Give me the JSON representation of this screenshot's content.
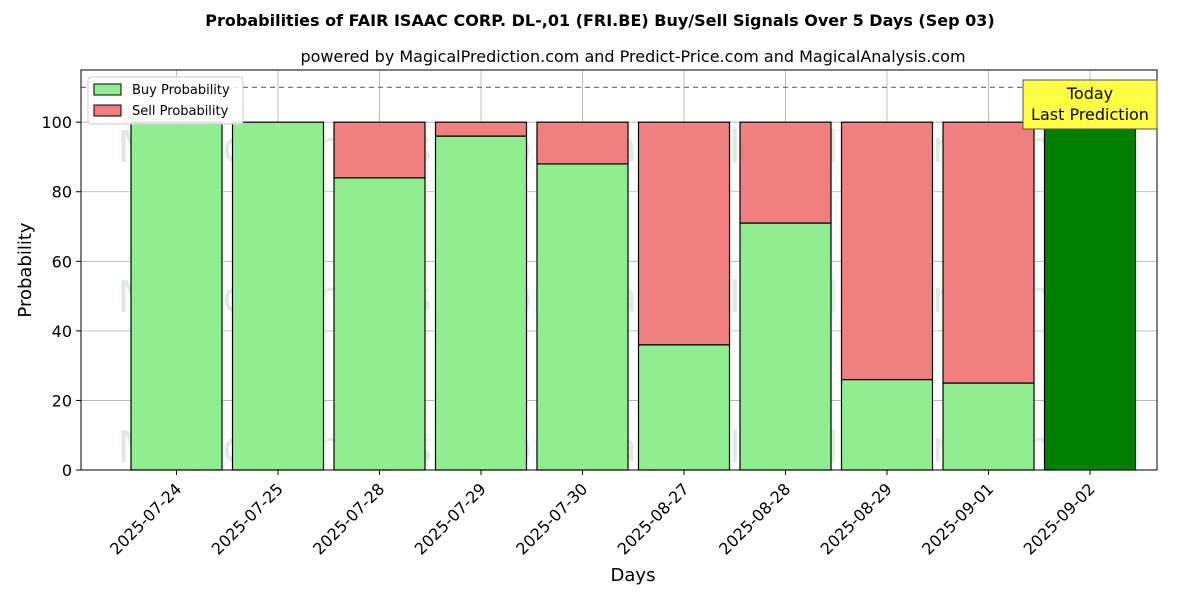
{
  "chart_data": {
    "type": "bar",
    "stacked": true,
    "title": "Probabilities of FAIR ISAAC CORP.  DL-,01 (FRI.BE) Buy/Sell Signals Over 5 Days (Sep 03)",
    "subtitle": "powered by MagicalPrediction.com and Predict-Price.com and MagicalAnalysis.com",
    "xlabel": "Days",
    "ylabel": "Probability",
    "ylim": [
      0,
      115
    ],
    "yticks": [
      0,
      20,
      40,
      60,
      80,
      100
    ],
    "grid": true,
    "reference_line": 110,
    "categories": [
      "2025-07-24",
      "2025-07-25",
      "2025-07-28",
      "2025-07-29",
      "2025-07-30",
      "2025-08-27",
      "2025-08-28",
      "2025-08-29",
      "2025-09-01",
      "2025-09-02"
    ],
    "series": [
      {
        "name": "Buy Probability",
        "color": "#90ee90",
        "values": [
          100,
          100,
          84,
          96,
          88,
          36,
          71,
          26,
          25,
          100
        ]
      },
      {
        "name": "Sell Probability",
        "color": "#f08080",
        "values": [
          0,
          0,
          16,
          4,
          12,
          64,
          29,
          74,
          75,
          0
        ]
      }
    ],
    "highlight": {
      "index": 9,
      "color": "#008000"
    },
    "legend": {
      "placement": "top-left"
    },
    "annotation": {
      "lines": [
        "Today",
        "Last Prediction"
      ],
      "background": "#ffff44"
    },
    "watermarks": [
      "MagicalAnalysis.com",
      "MagicalPrediction.com"
    ]
  }
}
